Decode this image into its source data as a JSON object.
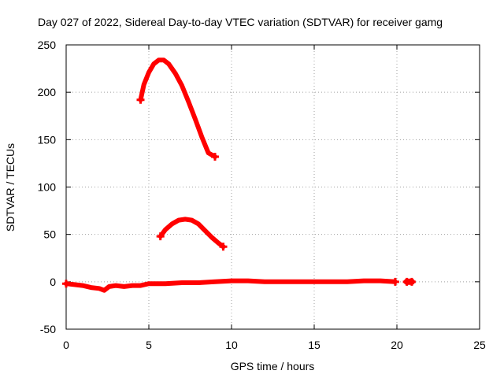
{
  "chart_data": {
    "type": "line",
    "title": "Day 027 of 2022, Sidereal Day-to-day VTEC variation (SDTVAR) for receiver gamg",
    "xlabel": "GPS time / hours",
    "ylabel": "SDTVAR / TECUs",
    "xlim": [
      0,
      25
    ],
    "ylim": [
      -50,
      250
    ],
    "xticks": [
      0,
      5,
      10,
      15,
      20,
      25
    ],
    "yticks": [
      -50,
      0,
      50,
      100,
      150,
      200,
      250
    ],
    "grid": true,
    "legend": "none",
    "series_color": "#ff0000",
    "series": [
      {
        "name": "satellite-arc-high",
        "x": [
          4.5,
          4.7,
          5.0,
          5.3,
          5.6,
          5.9,
          6.2,
          6.6,
          7.0,
          7.4,
          7.8,
          8.2,
          8.6,
          9.0
        ],
        "y": [
          192,
          208,
          221,
          230,
          234,
          234,
          230,
          220,
          207,
          190,
          172,
          153,
          136,
          132
        ]
      },
      {
        "name": "satellite-arc-mid",
        "x": [
          5.7,
          6.0,
          6.4,
          6.8,
          7.2,
          7.6,
          8.0,
          8.4,
          8.8,
          9.2,
          9.5
        ],
        "y": [
          48,
          55,
          61,
          65,
          66,
          65,
          61,
          54,
          47,
          41,
          37
        ]
      },
      {
        "name": "near-zero-baseline",
        "x": [
          0.0,
          0.5,
          1.0,
          1.5,
          2.0,
          2.3,
          2.6,
          3.0,
          3.5,
          4.0,
          4.5,
          5.0,
          6.0,
          7.0,
          8.0,
          9.0,
          10.0,
          11.0,
          12.0,
          13.0,
          14.0,
          15.0,
          16.0,
          17.0,
          18.0,
          19.0,
          19.9
        ],
        "y": [
          -2,
          -3,
          -4,
          -6,
          -7,
          -9,
          -5,
          -4,
          -5,
          -4,
          -4,
          -2,
          -2,
          -1,
          -1,
          0,
          1,
          1,
          0,
          0,
          0,
          0,
          0,
          0,
          1,
          1,
          0
        ]
      },
      {
        "name": "late-fragment",
        "x": [
          20.6,
          20.9
        ],
        "y": [
          0,
          0
        ]
      }
    ]
  }
}
